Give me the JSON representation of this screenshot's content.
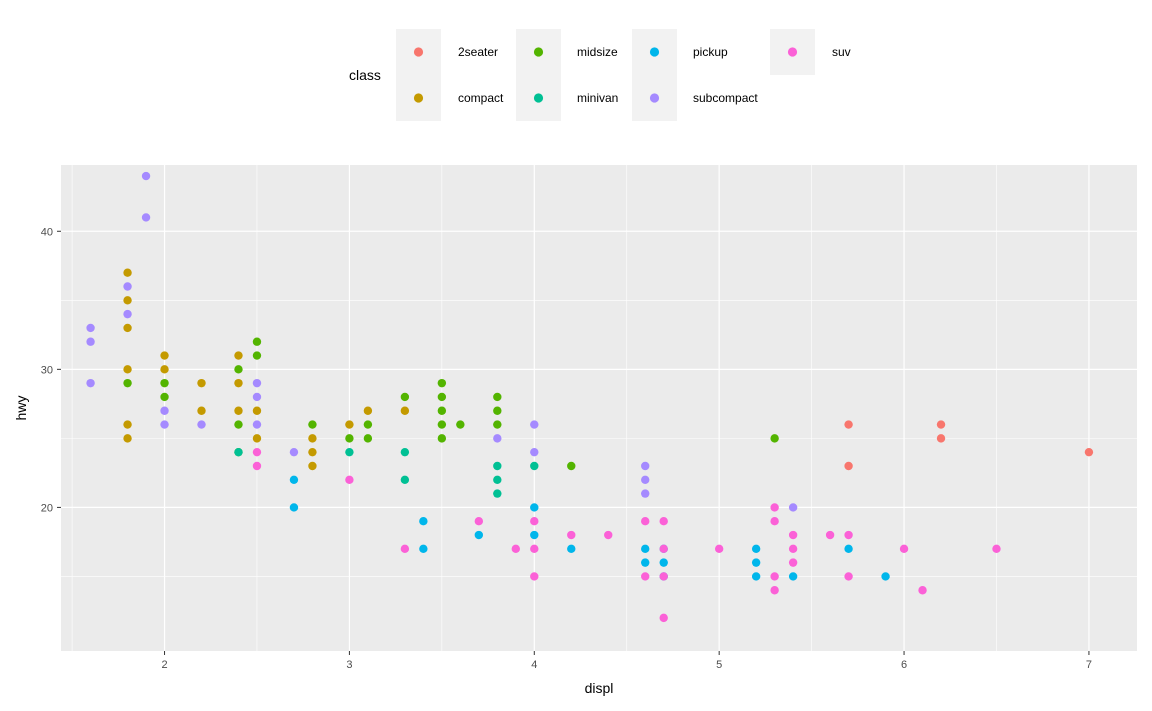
{
  "chart_data": {
    "type": "scatter",
    "xlabel": "displ",
    "ylabel": "hwy",
    "xlim": [
      1.44,
      7.26
    ],
    "ylim": [
      9.6,
      44.8
    ],
    "xticks": [
      2,
      3,
      4,
      5,
      6,
      7
    ],
    "yticks": [
      20,
      30,
      40
    ],
    "grid": true,
    "legend": {
      "title": "class",
      "position": "top"
    },
    "series": [
      {
        "name": "2seater",
        "color": "#F8766D",
        "points": [
          [
            5.7,
            26
          ],
          [
            5.7,
            23
          ],
          [
            6.2,
            26
          ],
          [
            6.2,
            25
          ],
          [
            7.0,
            24
          ]
        ]
      },
      {
        "name": "compact",
        "color": "#C49A00",
        "points": [
          [
            1.8,
            37
          ],
          [
            1.8,
            35
          ],
          [
            1.8,
            33
          ],
          [
            1.8,
            30
          ],
          [
            1.8,
            26
          ],
          [
            1.8,
            25
          ],
          [
            2.0,
            31
          ],
          [
            2.0,
            30
          ],
          [
            2.2,
            29
          ],
          [
            2.2,
            27
          ],
          [
            2.4,
            31
          ],
          [
            2.4,
            29
          ],
          [
            2.4,
            27
          ],
          [
            2.5,
            27
          ],
          [
            2.5,
            25
          ],
          [
            2.8,
            25
          ],
          [
            2.8,
            24
          ],
          [
            2.8,
            23
          ],
          [
            3.0,
            26
          ],
          [
            3.1,
            27
          ],
          [
            3.3,
            27
          ]
        ]
      },
      {
        "name": "midsize",
        "color": "#53B400",
        "points": [
          [
            1.8,
            29
          ],
          [
            2.0,
            29
          ],
          [
            2.0,
            28
          ],
          [
            2.4,
            30
          ],
          [
            2.4,
            26
          ],
          [
            2.4,
            24
          ],
          [
            2.5,
            32
          ],
          [
            2.5,
            31
          ],
          [
            2.8,
            26
          ],
          [
            3.0,
            25
          ],
          [
            3.1,
            26
          ],
          [
            3.1,
            25
          ],
          [
            3.3,
            28
          ],
          [
            3.5,
            29
          ],
          [
            3.5,
            28
          ],
          [
            3.5,
            27
          ],
          [
            3.5,
            26
          ],
          [
            3.5,
            25
          ],
          [
            3.6,
            26
          ],
          [
            3.8,
            28
          ],
          [
            3.8,
            27
          ],
          [
            3.8,
            26
          ],
          [
            4.2,
            23
          ],
          [
            5.3,
            25
          ]
        ]
      },
      {
        "name": "minivan",
        "color": "#00C094",
        "points": [
          [
            2.4,
            24
          ],
          [
            3.0,
            24
          ],
          [
            3.3,
            24
          ],
          [
            3.3,
            22
          ],
          [
            3.8,
            23
          ],
          [
            3.8,
            22
          ],
          [
            3.8,
            21
          ],
          [
            4.0,
            23
          ]
        ]
      },
      {
        "name": "pickup",
        "color": "#00B6EB",
        "points": [
          [
            2.7,
            22
          ],
          [
            2.7,
            20
          ],
          [
            3.4,
            19
          ],
          [
            3.4,
            17
          ],
          [
            3.7,
            18
          ],
          [
            4.0,
            20
          ],
          [
            4.0,
            18
          ],
          [
            4.2,
            17
          ],
          [
            4.6,
            17
          ],
          [
            4.6,
            16
          ],
          [
            4.7,
            17
          ],
          [
            4.7,
            16
          ],
          [
            4.7,
            15
          ],
          [
            5.2,
            17
          ],
          [
            5.2,
            16
          ],
          [
            5.2,
            15
          ],
          [
            5.4,
            15
          ],
          [
            5.7,
            17
          ],
          [
            5.9,
            15
          ]
        ]
      },
      {
        "name": "subcompact",
        "color": "#A58AFF",
        "points": [
          [
            1.6,
            33
          ],
          [
            1.6,
            32
          ],
          [
            1.6,
            29
          ],
          [
            1.8,
            36
          ],
          [
            1.8,
            34
          ],
          [
            1.9,
            44
          ],
          [
            1.9,
            41
          ],
          [
            2.0,
            27
          ],
          [
            2.0,
            26
          ],
          [
            2.2,
            26
          ],
          [
            2.5,
            29
          ],
          [
            2.5,
            28
          ],
          [
            2.5,
            26
          ],
          [
            2.7,
            24
          ],
          [
            3.8,
            25
          ],
          [
            4.0,
            26
          ],
          [
            4.0,
            24
          ],
          [
            4.6,
            23
          ],
          [
            4.6,
            22
          ],
          [
            4.6,
            21
          ],
          [
            5.4,
            20
          ]
        ]
      },
      {
        "name": "suv",
        "color": "#FB61D7",
        "points": [
          [
            2.5,
            24
          ],
          [
            2.5,
            23
          ],
          [
            3.0,
            22
          ],
          [
            3.3,
            17
          ],
          [
            3.7,
            19
          ],
          [
            3.9,
            17
          ],
          [
            4.0,
            19
          ],
          [
            4.0,
            17
          ],
          [
            4.0,
            15
          ],
          [
            4.2,
            18
          ],
          [
            4.4,
            18
          ],
          [
            4.6,
            19
          ],
          [
            4.6,
            15
          ],
          [
            4.7,
            19
          ],
          [
            4.7,
            17
          ],
          [
            4.7,
            15
          ],
          [
            4.7,
            12
          ],
          [
            5.0,
            17
          ],
          [
            5.3,
            20
          ],
          [
            5.3,
            19
          ],
          [
            5.3,
            15
          ],
          [
            5.3,
            14
          ],
          [
            5.4,
            18
          ],
          [
            5.4,
            17
          ],
          [
            5.4,
            16
          ],
          [
            5.6,
            18
          ],
          [
            5.7,
            18
          ],
          [
            5.7,
            15
          ],
          [
            6.0,
            17
          ],
          [
            6.1,
            14
          ],
          [
            6.5,
            17
          ]
        ]
      }
    ]
  }
}
